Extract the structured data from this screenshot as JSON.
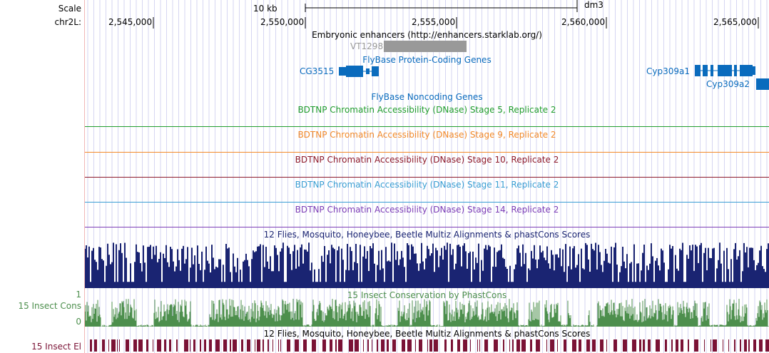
{
  "side": {
    "scale": "Scale",
    "chrom": "chr2L:",
    "cons_label": "15 Insect Cons",
    "cons_max": "1",
    "cons_min": "0",
    "el_label": "15 Insect El"
  },
  "ruler": {
    "scale_text": "10 kb",
    "assembly": "dm3",
    "positions": [
      "2,545,000",
      "2,550,000",
      "2,555,000",
      "2,560,000",
      "2,565,000"
    ]
  },
  "tracks": {
    "enhancers_title": "Embryonic enhancers (http://enhancers.starklab.org/)",
    "enhancer_item": "VT1298",
    "protein_genes_title": "FlyBase Protein-Coding Genes",
    "gene_cg3515": "CG3515",
    "gene_cyp309a1": "Cyp309a1",
    "gene_cyp309a2": "Cyp309a2",
    "noncoding_title": "FlyBase Noncoding Genes",
    "dnase": [
      {
        "title": "BDTNP Chromatin Accessibility (DNase) Stage 5, Replicate 2",
        "color": "#229e2e"
      },
      {
        "title": "BDTNP Chromatin Accessibility (DNase) Stage 9, Replicate 2",
        "color": "#f28a2a"
      },
      {
        "title": "BDTNP Chromatin Accessibility (DNase) Stage 10, Replicate 2",
        "color": "#8e1b2c"
      },
      {
        "title": "BDTNP Chromatin Accessibility (DNase) Stage 11, Replicate 2",
        "color": "#3a9ed3"
      },
      {
        "title": "BDTNP Chromatin Accessibility (DNase) Stage 14, Replicate 2",
        "color": "#7c3db6"
      }
    ],
    "multiz_title": "12 Flies, Mosquito, Honeybee, Beetle Multiz Alignments & phastCons Scores",
    "cons_title": "15 Insect Conservation by PhastCons",
    "el_title": "12 Flies, Mosquito, Honeybee, Beetle Multiz Alignments & phastCons Scores"
  },
  "colors": {
    "gene": "#0a6bbd",
    "enhancer": "#999999",
    "multiz": "#1a2472",
    "phastcons": "#4d8f4d",
    "elements": "#7a1235",
    "guide": "#d6d6f2"
  }
}
